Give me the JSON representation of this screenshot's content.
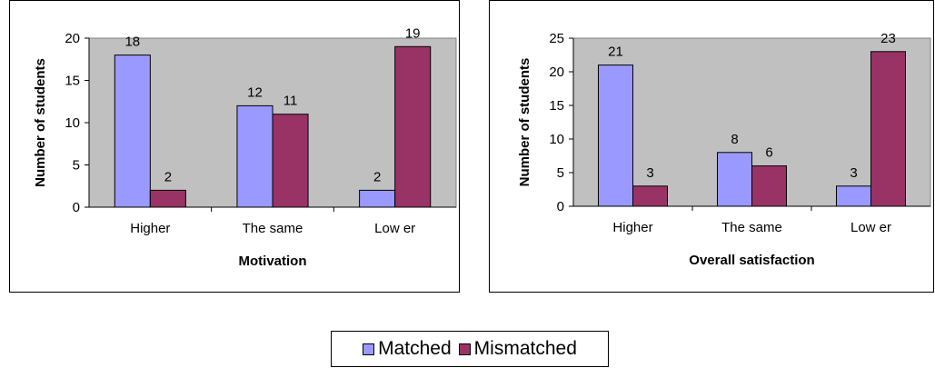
{
  "chart_data": [
    {
      "type": "bar",
      "categories": [
        "Higher",
        "The same",
        "Low er"
      ],
      "series": [
        {
          "name": "Matched",
          "values": [
            18,
            12,
            2
          ]
        },
        {
          "name": "Mismatched",
          "values": [
            2,
            11,
            19
          ]
        }
      ],
      "xlabel": "Motivation",
      "ylabel": "Number of students",
      "ylim": [
        0,
        20
      ],
      "yticks": [
        0,
        5,
        10,
        15,
        20
      ],
      "grid": false,
      "legend": "bottom"
    },
    {
      "type": "bar",
      "categories": [
        "Higher",
        "The same",
        "Low er"
      ],
      "series": [
        {
          "name": "Matched",
          "values": [
            21,
            8,
            3
          ]
        },
        {
          "name": "Mismatched",
          "values": [
            3,
            6,
            23
          ]
        }
      ],
      "xlabel": "Overall satisfaction",
      "ylabel": "Number of students",
      "ylim": [
        0,
        25
      ],
      "yticks": [
        0,
        5,
        10,
        15,
        20,
        25
      ],
      "grid": false,
      "legend": "bottom"
    }
  ],
  "legend": {
    "items": [
      {
        "label": "Matched",
        "color": "#9999ff"
      },
      {
        "label": "Mismatched",
        "color": "#993366"
      }
    ]
  },
  "colors": {
    "plot_background": "#c0c0c0",
    "matched": "#9999ff",
    "mismatched": "#993366"
  }
}
